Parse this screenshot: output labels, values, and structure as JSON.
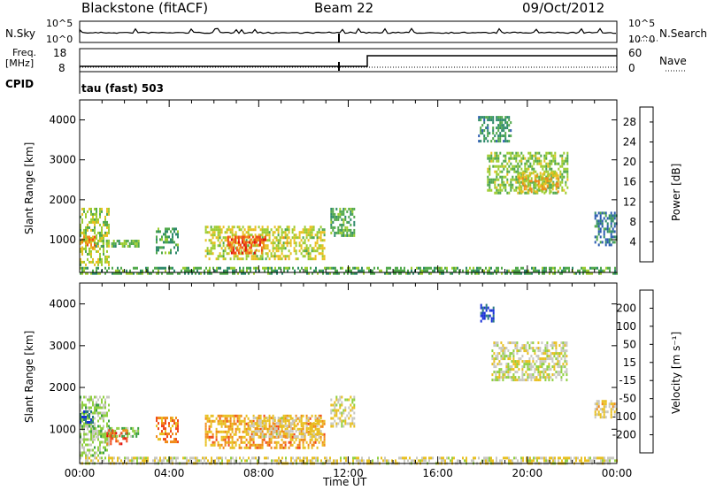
{
  "header": {
    "title": "Blackstone (fitACF)",
    "beam": "Beam 22",
    "date": "09/Oct/2012"
  },
  "status_panels": {
    "nsky_label": "N.Sky",
    "nsearch_label": "N.Search",
    "nsky_ticks": [
      "10^5",
      "10^0"
    ],
    "nsearch_ticks": [
      "10^5",
      "10^0"
    ],
    "freq_label_line1": "Freq.",
    "freq_label_line2": "[MHz]",
    "freq_ticks": [
      "18",
      "8"
    ],
    "nave_label": "Nave",
    "nave_ticks": [
      "60",
      "0"
    ],
    "cpid_label": "CPID",
    "cpid_value": "tau (fast) 503"
  },
  "chart_data": [
    {
      "type": "heatmap",
      "name": "power-panel",
      "ylabel": "Slant Range [km]",
      "yticks": [
        1000,
        2000,
        3000,
        4000
      ],
      "ylim": [
        180,
        4500
      ],
      "xlim_hours": [
        0,
        24
      ],
      "colorbar": {
        "label": "Power [dB]",
        "tick_labels": [
          "4",
          "8",
          "12",
          "16",
          "20",
          "24",
          "28"
        ],
        "range": [
          0,
          31
        ],
        "colors": [
          "#1a1ae6",
          "#2a5ab0",
          "#2e8a6a",
          "#4fa84a",
          "#9ccc30",
          "#e8c020",
          "#f08a18",
          "#f04818",
          "#e01010"
        ]
      },
      "regions": [
        {
          "t0": 0.0,
          "t1": 1.3,
          "r0": 380,
          "r1": 1800,
          "v": 16
        },
        {
          "t0": 0.0,
          "t1": 0.7,
          "r0": 800,
          "r1": 1100,
          "v": 22
        },
        {
          "t0": 0.7,
          "t1": 2.6,
          "r0": 850,
          "r1": 1000,
          "v": 13
        },
        {
          "t0": 3.4,
          "t1": 4.4,
          "r0": 700,
          "r1": 1300,
          "v": 11
        },
        {
          "t0": 5.6,
          "t1": 10.9,
          "r0": 550,
          "r1": 1350,
          "v": 17
        },
        {
          "t0": 6.6,
          "t1": 8.3,
          "r0": 700,
          "r1": 1100,
          "v": 25
        },
        {
          "t0": 11.2,
          "t1": 12.3,
          "r0": 1100,
          "r1": 1800,
          "v": 12
        },
        {
          "t0": 18.2,
          "t1": 21.8,
          "r0": 2200,
          "r1": 3200,
          "v": 14
        },
        {
          "t0": 19.6,
          "t1": 21.4,
          "r0": 2200,
          "r1": 2700,
          "v": 19
        },
        {
          "t0": 17.8,
          "t1": 19.3,
          "r0": 3500,
          "r1": 4100,
          "v": 10
        },
        {
          "t0": 23.0,
          "t1": 24.0,
          "r0": 900,
          "r1": 1700,
          "v": 8
        },
        {
          "t0": 0.0,
          "t1": 24.0,
          "r0": 180,
          "r1": 320,
          "v": 12
        }
      ]
    },
    {
      "type": "heatmap",
      "name": "velocity-panel",
      "ylabel": "Slant Range [km]",
      "yticks": [
        1000,
        2000,
        3000,
        4000
      ],
      "ylim": [
        180,
        4500
      ],
      "xlim_hours": [
        0,
        24
      ],
      "xticks": [
        "00:00",
        "04:00",
        "08:00",
        "12:00",
        "16:00",
        "20:00",
        "00:00"
      ],
      "xlabel": "Time UT",
      "colorbar": {
        "label": "Velocity [m s⁻¹]",
        "tick_labels": [
          "200",
          "100",
          "50",
          "15",
          "-15",
          "-50",
          "-100",
          "-200"
        ],
        "range": [
          -250,
          250
        ],
        "colors": [
          "#1830d8",
          "#2a7a80",
          "#3aa040",
          "#90d040",
          "#c8c8c0",
          "#e8c020",
          "#f08a18",
          "#f04818",
          "#e01010"
        ]
      },
      "regions": [
        {
          "t0": 0.0,
          "t1": 1.3,
          "r0": 400,
          "r1": 1800,
          "v": -40
        },
        {
          "t0": 0.0,
          "t1": 0.6,
          "r0": 1150,
          "r1": 1450,
          "v": -180
        },
        {
          "t0": 0.6,
          "t1": 2.6,
          "r0": 800,
          "r1": 1050,
          "v": -70
        },
        {
          "t0": 1.2,
          "t1": 2.1,
          "r0": 650,
          "r1": 1000,
          "v": 150
        },
        {
          "t0": 3.4,
          "t1": 4.4,
          "r0": 700,
          "r1": 1300,
          "v": 120
        },
        {
          "t0": 5.6,
          "t1": 10.9,
          "r0": 550,
          "r1": 1350,
          "v": 90
        },
        {
          "t0": 7.5,
          "t1": 10.8,
          "r0": 850,
          "r1": 1300,
          "v": 30
        },
        {
          "t0": 11.2,
          "t1": 12.3,
          "r0": 1100,
          "r1": 1800,
          "v": 10
        },
        {
          "t0": 18.4,
          "t1": 21.8,
          "r0": 2200,
          "r1": 3100,
          "v": 0
        },
        {
          "t0": 17.9,
          "t1": 18.5,
          "r0": 3600,
          "r1": 4000,
          "v": -200
        },
        {
          "t0": 23.0,
          "t1": 24.0,
          "r0": 1300,
          "r1": 1700,
          "v": 40
        },
        {
          "t0": 0.0,
          "t1": 24.0,
          "r0": 180,
          "r1": 340,
          "v": 20
        }
      ]
    }
  ]
}
